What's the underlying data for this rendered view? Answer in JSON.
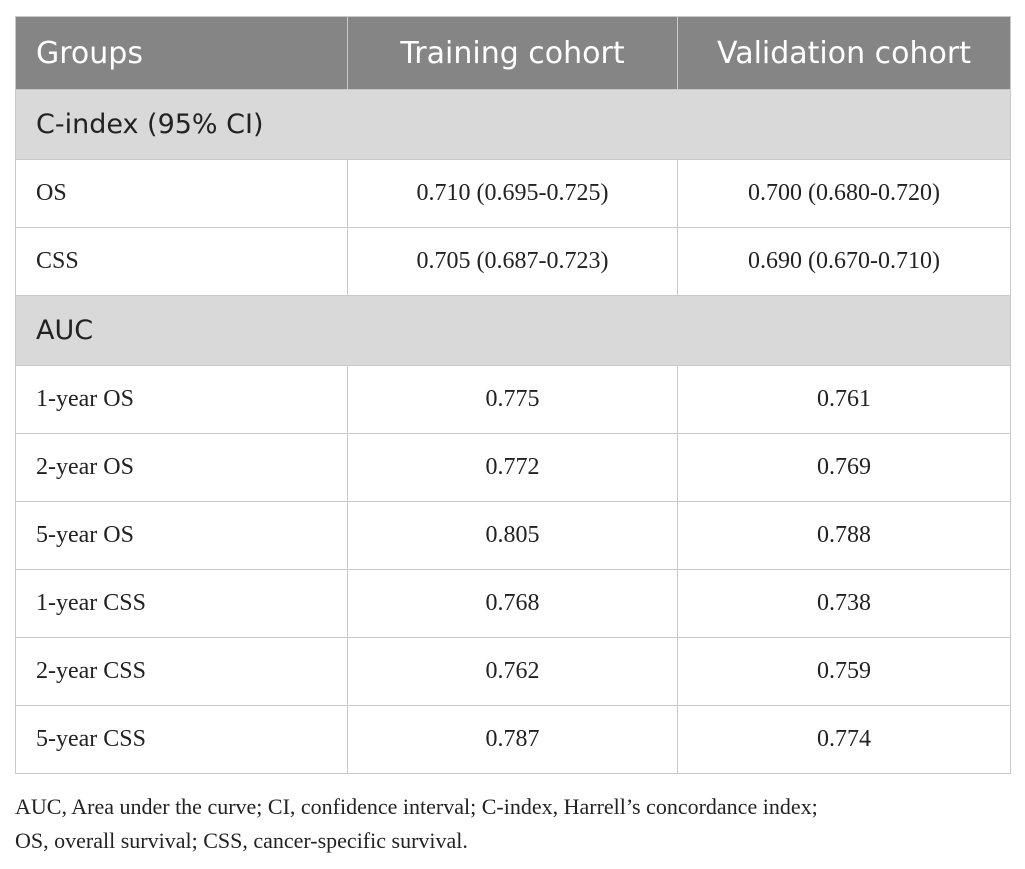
{
  "table": {
    "headers": [
      "Groups",
      "Training cohort",
      "Validation cohort"
    ],
    "sections": [
      {
        "title": "C-index (95% CI)",
        "rows": [
          {
            "label": "OS",
            "training": "0.710 (0.695-0.725)",
            "validation": "0.700 (0.680-0.720)"
          },
          {
            "label": "CSS",
            "training": "0.705 (0.687-0.723)",
            "validation": "0.690 (0.670-0.710)"
          }
        ]
      },
      {
        "title": "AUC",
        "rows": [
          {
            "label": "1-year OS",
            "training": "0.775",
            "validation": "0.761"
          },
          {
            "label": "2-year OS",
            "training": "0.772",
            "validation": "0.769"
          },
          {
            "label": "5-year OS",
            "training": "0.805",
            "validation": "0.788"
          },
          {
            "label": "1-year CSS",
            "training": "0.768",
            "validation": "0.738"
          },
          {
            "label": "2-year CSS",
            "training": "0.762",
            "validation": "0.759"
          },
          {
            "label": "5-year CSS",
            "training": "0.787",
            "validation": "0.774"
          }
        ]
      }
    ]
  },
  "footnote": {
    "line1": "AUC, Area under the curve; CI, confidence interval; C-index, Harrell’s concordance index;",
    "line2": "OS, overall survival; CSS, cancer-specific survival."
  },
  "colors": {
    "header_bg": "#858585",
    "section_bg": "#d9d9d9",
    "border": "#c9c9c9"
  }
}
